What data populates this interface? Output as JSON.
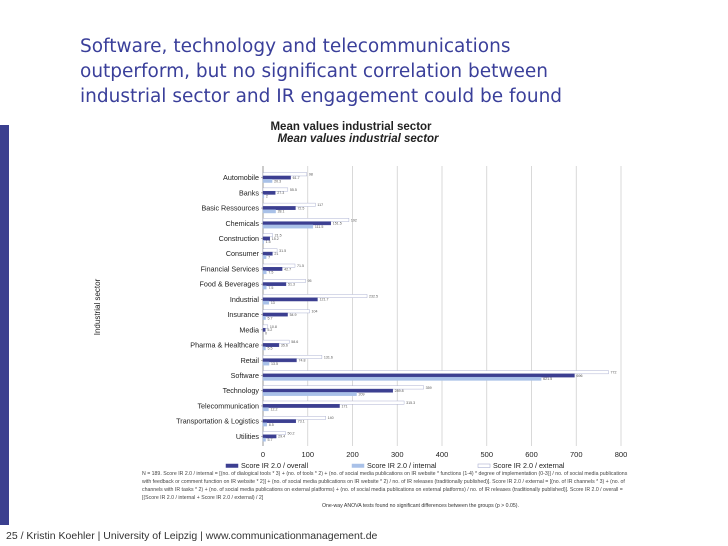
{
  "slide": {
    "title_lines": [
      "Software, technology and telecommunications",
      "outperform, but no significant correlation between",
      "industrial sector and IR engagement could be found"
    ],
    "footer": "25 / Kristin Koehler | University of Leipzig  | www.communicationmanagement.de",
    "footnote": "N = 189. Score IR 2.0 / internal = [(no. of dialogical tools * 3) + (no. of tools * 2) + (no. of social media publications on IR website * functions (1-4) * degree of implementation (0-3)] / no. of social media publications with feedback or comment function on IR website * 2)] + (no. of social media publications on IR website * 2) / no. of IR releases (traditionally published)]. Score IR 2.0 / external = [(no. of IR channels * 3) + (no. of channels with IR tasks * 2) + (no. of social media publications on external platforms) + (no. of social media publications on external platforms) / no. of IR releases (traditionally published)]. Score IR 2.0 / overall = [(Score IR 2.0 / internal + Score IR 2.0 / external) / 2]",
    "anova_note": "One-way ANOVA tests found no significant differences between the groups (p > 0.05)."
  },
  "colors": {
    "title": "#3a3f9a",
    "left_bar": "#3b3f8f",
    "series_overall": "#3c3f91",
    "series_internal": "#a9c1e8",
    "series_external": "#ffffff",
    "grid": "#d0d0d0"
  },
  "chart_data": {
    "type": "bar",
    "orientation": "horizontal",
    "title": "Mean values industrial sector",
    "xlabel": "",
    "ylabel": "Industrial sector",
    "xlim": [
      0,
      800
    ],
    "xticks": [
      0,
      100,
      200,
      300,
      400,
      500,
      600,
      700,
      800
    ],
    "grid": true,
    "legend_position": "bottom",
    "categories": [
      "Automobile",
      "Banks",
      "Basic Ressources",
      "Chemicals",
      "Construction",
      "Consumer",
      "Financial Services",
      "Food & Beverages",
      "Industrial",
      "Insurance",
      "Media",
      "Pharma & Healthcare",
      "Retail",
      "Software",
      "Technology",
      "Telecommunication",
      "Transportation & Logistics",
      "Utilities"
    ],
    "series": [
      {
        "name": "Score IR 2.0 / overall",
        "values": [
          61.7,
          27.3,
          72.5,
          151.5,
          15.2,
          21.0,
          42.7,
          51.3,
          121.7,
          54.9,
          5.2,
          35.6,
          74.8,
          696.0,
          289.8,
          171.0,
          73.1,
          29.4
        ]
      },
      {
        "name": "Score IR 2.0 / internal",
        "values": [
          20.3,
          2.0,
          28.1,
          111.5,
          1.5,
          7.0,
          7.5,
          7.5,
          13.0,
          5.7,
          0.0,
          5.5,
          13.5,
          621.5,
          209.0,
          12.2,
          8.5,
          5.7
        ]
      },
      {
        "name": "Score IR 2.0 / external",
        "values": [
          98.0,
          55.5,
          117.0,
          192.0,
          21.5,
          31.5,
          71.5,
          95.0,
          232.5,
          104.0,
          10.8,
          58.6,
          131.6,
          772.0,
          359.0,
          315.3,
          140.0,
          50.2
        ]
      }
    ]
  }
}
